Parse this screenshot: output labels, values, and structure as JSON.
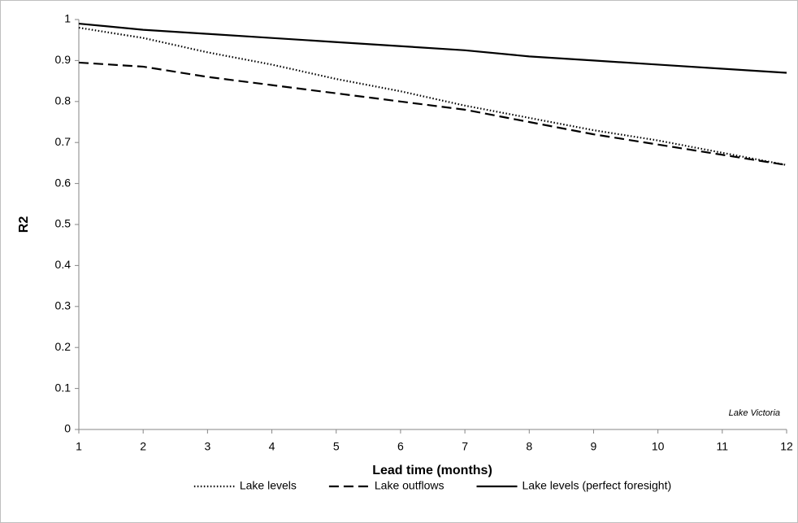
{
  "chart_data": {
    "type": "line",
    "xlabel": "Lead time (months)",
    "ylabel": "R2",
    "annotation": "Lake Victoria",
    "x": [
      1,
      2,
      3,
      4,
      5,
      6,
      7,
      8,
      9,
      10,
      11,
      12
    ],
    "xlim": [
      1,
      12
    ],
    "xticks": [
      1,
      2,
      3,
      4,
      5,
      6,
      7,
      8,
      9,
      10,
      11,
      12
    ],
    "ylim": [
      0,
      1
    ],
    "yticks": [
      0,
      0.1,
      0.2,
      0.3,
      0.4,
      0.5,
      0.6,
      0.7,
      0.8,
      0.9,
      1
    ],
    "grid": false,
    "legend": "bottom",
    "series": [
      {
        "name": "Lake levels",
        "color": "#000000",
        "dash": "dotted",
        "values": [
          0.98,
          0.955,
          0.92,
          0.89,
          0.855,
          0.825,
          0.79,
          0.76,
          0.73,
          0.705,
          0.675,
          0.645
        ]
      },
      {
        "name": "Lake outflows",
        "color": "#000000",
        "dash": "dashed",
        "values": [
          0.895,
          0.885,
          0.86,
          0.84,
          0.82,
          0.8,
          0.78,
          0.75,
          0.72,
          0.695,
          0.67,
          0.645
        ]
      },
      {
        "name": "Lake levels (perfect foresight)",
        "color": "#000000",
        "dash": "solid",
        "values": [
          0.99,
          0.975,
          0.965,
          0.955,
          0.945,
          0.935,
          0.925,
          0.91,
          0.9,
          0.89,
          0.88,
          0.87
        ]
      }
    ]
  }
}
